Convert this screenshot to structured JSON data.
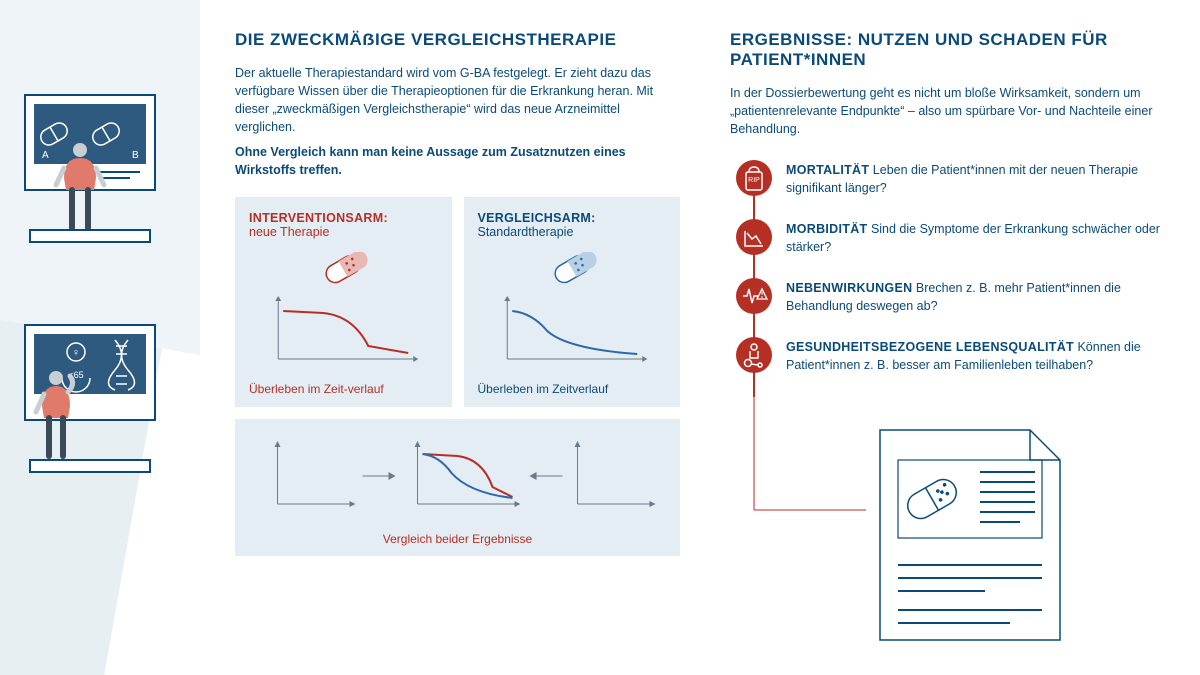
{
  "colors": {
    "primary": "#0a4a7a",
    "accent_red": "#b52f25",
    "accent_blue": "#2a6aa8",
    "panel_bg": "#e4edf3",
    "page_bg": "#ffffff",
    "wedge_bg": "#e8eff3",
    "illus_grey": "#3a4a58",
    "illus_shirt": "#e07a6a"
  },
  "left": {
    "heading": "DIE ZWECKMÄẞIGE VERGLEICHSTHERAPIE",
    "p1": "Der aktuelle Therapiestandard wird vom G-BA festgelegt. Er zieht dazu das verfügbare Wissen über die Therapieoptionen für die Erkrankung heran. Mit dieser „zweckmäßigen Vergleichstherapie“ wird das neue Arzneimittel verglichen.",
    "p2": "Ohne Vergleich kann man keine Aussage zum Zusatznutzen eines Wirkstoffs treffen.",
    "arms": {
      "intervention": {
        "title": "INTERVENTIONSARM:",
        "sub": "neue Therapie",
        "caption": "Überleben im Zeit-verlauf",
        "curve_color": "#b52f25",
        "pill_fill": "#ffffff",
        "pill_accent": "#b52f25"
      },
      "control": {
        "title": "VERGLEICHSARM:",
        "sub": "Standardtherapie",
        "caption": "Überleben im Zeitverlauf",
        "curve_color": "#2a6aa8",
        "pill_fill": "#ffffff",
        "pill_accent": "#2a6aa8"
      }
    },
    "compare_caption": "Vergleich beider Ergebnisse"
  },
  "right": {
    "heading": "ERGEBNISSE: NUTZEN UND SCHADEN FÜR PATIENT*INNEN",
    "p1": "In der Dossierbewertung geht es nicht um bloße Wirksamkeit, sondern um „patientenrelevante Endpunkte“ – also um spürbare Vor- und Nachteile einer Behandlung.",
    "endpoints": [
      {
        "key": "mortalitaet",
        "label": "MORTALITÄT",
        "text": "Leben die Patient*innen mit der neuen Therapie signifikant länger?"
      },
      {
        "key": "morbiditaet",
        "label": "MORBIDITÄT",
        "text": "Sind die Symptome der Erkrankung schwächer oder stärker?"
      },
      {
        "key": "nebenwirkungen",
        "label": "NEBENWIRKUNGEN",
        "text": "Brechen z. B. mehr Patient*innen die Behandlung deswegen ab?"
      },
      {
        "key": "lebensqualitaet",
        "label": "GESUNDHEITSBEZOGENE LEBENSQUALITÄT",
        "text": "Können die Patient*innen z. B. besser am Familienleben teilhaben?"
      }
    ]
  },
  "illus": {
    "top": {
      "label_a": "A",
      "label_b": "B"
    },
    "bottom": {
      "age_label": "<65",
      "gender_label": "♀"
    }
  }
}
